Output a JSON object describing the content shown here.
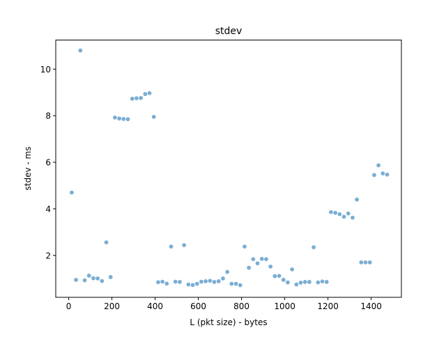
{
  "chart_data": {
    "type": "scatter",
    "title": "stdev",
    "xlabel": "L (pkt size) - bytes",
    "ylabel": "stdev - ms",
    "xlim": [
      -60,
      1540
    ],
    "ylim": [
      0.2,
      11.25
    ],
    "xticks": [
      0,
      200,
      400,
      600,
      800,
      1000,
      1200,
      1400
    ],
    "yticks": [
      2,
      4,
      6,
      8,
      10
    ],
    "grid": false,
    "marker_color": "#7aaed3",
    "series": [
      {
        "points": [
          [
            14,
            4.7
          ],
          [
            34,
            0.95
          ],
          [
            54,
            10.8
          ],
          [
            74,
            0.93
          ],
          [
            94,
            1.13
          ],
          [
            114,
            1.02
          ],
          [
            134,
            1.01
          ],
          [
            154,
            0.9
          ],
          [
            174,
            2.56
          ],
          [
            194,
            1.07
          ],
          [
            214,
            7.92
          ],
          [
            234,
            7.88
          ],
          [
            254,
            7.86
          ],
          [
            274,
            7.85
          ],
          [
            294,
            8.73
          ],
          [
            314,
            8.75
          ],
          [
            334,
            8.76
          ],
          [
            354,
            8.93
          ],
          [
            374,
            8.97
          ],
          [
            394,
            7.95
          ],
          [
            414,
            0.85
          ],
          [
            434,
            0.87
          ],
          [
            454,
            0.79
          ],
          [
            474,
            2.38
          ],
          [
            494,
            0.87
          ],
          [
            514,
            0.86
          ],
          [
            534,
            2.44
          ],
          [
            554,
            0.75
          ],
          [
            574,
            0.73
          ],
          [
            594,
            0.78
          ],
          [
            614,
            0.87
          ],
          [
            634,
            0.89
          ],
          [
            654,
            0.91
          ],
          [
            674,
            0.86
          ],
          [
            694,
            0.89
          ],
          [
            714,
            1.01
          ],
          [
            734,
            1.29
          ],
          [
            754,
            0.78
          ],
          [
            774,
            0.78
          ],
          [
            794,
            0.72
          ],
          [
            814,
            2.38
          ],
          [
            834,
            1.47
          ],
          [
            854,
            1.84
          ],
          [
            874,
            1.66
          ],
          [
            894,
            1.85
          ],
          [
            914,
            1.84
          ],
          [
            934,
            1.52
          ],
          [
            954,
            1.11
          ],
          [
            974,
            1.12
          ],
          [
            994,
            0.95
          ],
          [
            1014,
            0.84
          ],
          [
            1034,
            1.4
          ],
          [
            1054,
            0.75
          ],
          [
            1074,
            0.83
          ],
          [
            1094,
            0.86
          ],
          [
            1114,
            0.86
          ],
          [
            1134,
            2.35
          ],
          [
            1154,
            0.84
          ],
          [
            1174,
            0.88
          ],
          [
            1194,
            0.86
          ],
          [
            1214,
            3.86
          ],
          [
            1234,
            3.83
          ],
          [
            1254,
            3.77
          ],
          [
            1274,
            3.66
          ],
          [
            1294,
            3.8
          ],
          [
            1314,
            3.62
          ],
          [
            1334,
            4.4
          ],
          [
            1354,
            1.7
          ],
          [
            1374,
            1.7
          ],
          [
            1394,
            1.7
          ],
          [
            1414,
            5.45
          ],
          [
            1434,
            5.87
          ],
          [
            1454,
            5.52
          ],
          [
            1474,
            5.47
          ]
        ]
      }
    ]
  }
}
